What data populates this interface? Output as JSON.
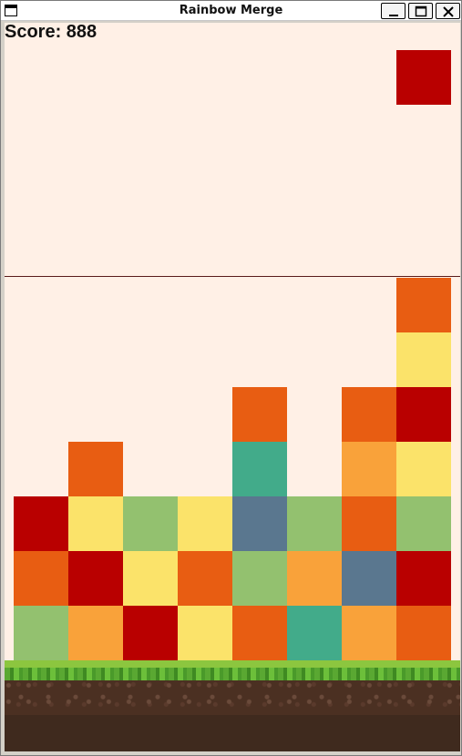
{
  "window": {
    "title": "Rainbow Merge"
  },
  "hud": {
    "score_text": "Score: 888"
  },
  "palette": {
    "red": "#b90000",
    "orange": "#e85d12",
    "amber": "#f9a23a",
    "yellow": "#fbe36a",
    "green": "#93c16f",
    "teal": "#42ab8a",
    "slate": "#5a778f"
  },
  "falling_tile": "red",
  "grid": {
    "columns": 8,
    "rows": 7,
    "cells": [
      [
        null,
        null,
        null,
        null,
        null,
        null,
        null,
        "orange"
      ],
      [
        null,
        null,
        null,
        null,
        null,
        null,
        null,
        "yellow"
      ],
      [
        null,
        null,
        null,
        null,
        "orange",
        null,
        "orange",
        "red"
      ],
      [
        null,
        "orange",
        null,
        null,
        "teal",
        null,
        "amber",
        "yellow"
      ],
      [
        "red",
        "yellow",
        "green",
        "yellow",
        "slate",
        "green",
        "orange",
        "green"
      ],
      [
        "orange",
        "red",
        "yellow",
        "orange",
        "green",
        "amber",
        "slate",
        "red"
      ],
      [
        "green",
        "amber",
        "red",
        "yellow",
        "orange",
        "teal",
        "amber",
        "orange"
      ]
    ]
  }
}
